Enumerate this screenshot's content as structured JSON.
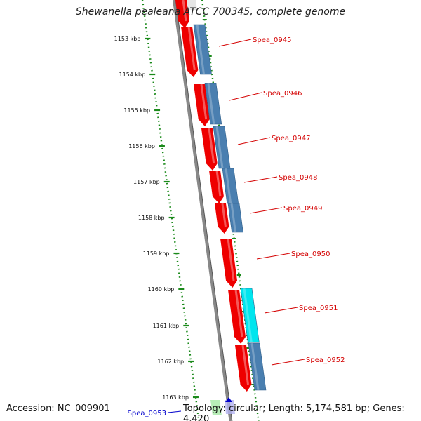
{
  "title": "Shewanella pealeana ATCC 700345, complete genome",
  "accession": "Accession: NC_009901",
  "topology": "Topology: circular; Length: 5,174,581 bp; Genes: 4,420",
  "colors": {
    "forward_cds": "#ee0000",
    "reverse_cds": "#4a7fb0",
    "highlight_cds": "#00e5ee",
    "rna": "#99e699",
    "label_red": "#d40000",
    "label_blue": "#0000cc",
    "tick_green": "#1b8a1b",
    "backbone": "#888888"
  },
  "ticks": [
    {
      "label": "1153 kbp"
    },
    {
      "label": "1154 kbp"
    },
    {
      "label": "1155 kbp"
    },
    {
      "label": "1156 kbp"
    },
    {
      "label": "1157 kbp"
    },
    {
      "label": "1158 kbp"
    },
    {
      "label": "1159 kbp"
    },
    {
      "label": "1160 kbp"
    },
    {
      "label": "1161 kbp"
    },
    {
      "label": "1162 kbp"
    },
    {
      "label": "1163 kbp"
    }
  ],
  "gene_labels": [
    {
      "name": "Spea_0945",
      "color": "red"
    },
    {
      "name": "Spea_0946",
      "color": "red"
    },
    {
      "name": "Spea_0947",
      "color": "red"
    },
    {
      "name": "Spea_0948",
      "color": "red"
    },
    {
      "name": "Spea_0949",
      "color": "red"
    },
    {
      "name": "Spea_0950",
      "color": "red"
    },
    {
      "name": "Spea_0951",
      "color": "red"
    },
    {
      "name": "Spea_0952",
      "color": "red"
    },
    {
      "name": "Spea_0953",
      "color": "blue"
    }
  ]
}
